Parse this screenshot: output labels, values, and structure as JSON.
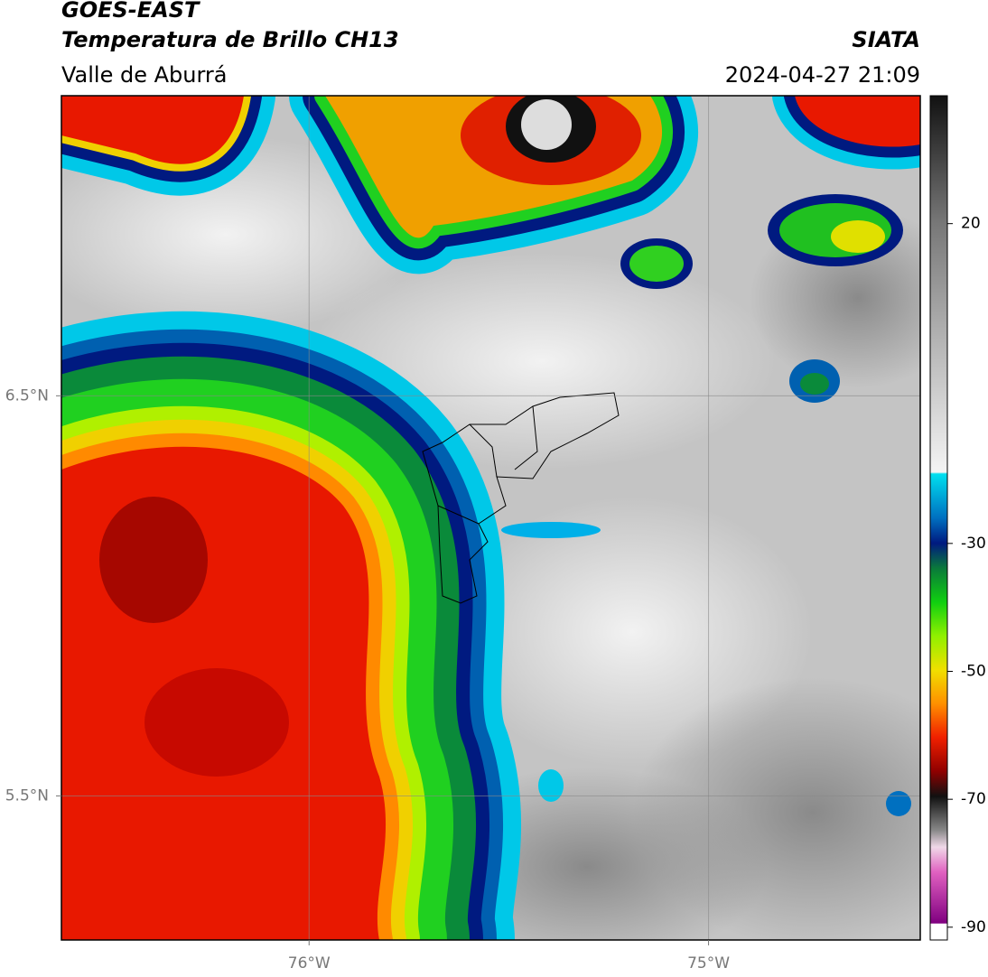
{
  "map": {
    "header": {
      "title": "GOES-EAST",
      "subtitle": "Temperatura de Brillo CH13",
      "region": "Valle de Aburrá",
      "source": "SIATA",
      "datetime": "2024-04-27 21:09"
    },
    "xlim": [
      -76.62,
      -74.47
    ],
    "ylim": [
      5.14,
      7.25
    ],
    "xticks": [
      {
        "value": -76,
        "label": "76°W"
      },
      {
        "value": -75,
        "label": "75°W"
      }
    ],
    "yticks": [
      {
        "value": 6.5,
        "label": "6.5°N"
      },
      {
        "value": 5.5,
        "label": "5.5°N"
      }
    ],
    "grid": true,
    "colorbar": {
      "lim": [
        -92,
        40
      ],
      "ticks": [
        20,
        -30,
        -50,
        -70,
        -90
      ]
    }
  }
}
